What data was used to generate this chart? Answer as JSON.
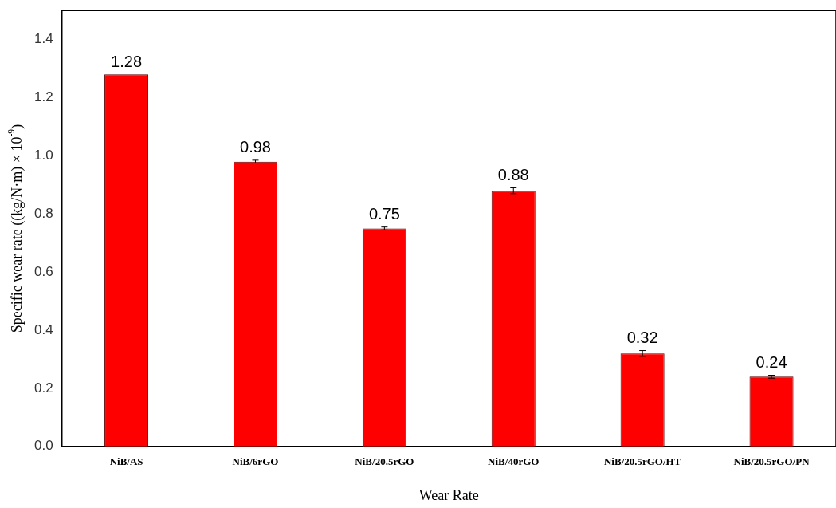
{
  "chart_data": {
    "type": "bar",
    "xlabel": "Wear Rate",
    "ylabel": "Specific wear rate ((kg/N·m) × 10$^{-9}$)",
    "categories": [
      "NiB/AS",
      "NiB/6rGO",
      "NiB/20.5rGO",
      "NiB/40rGO",
      "NiB/20.5rGO/HT",
      "NiB/20.5rGO/PN"
    ],
    "values": [
      1.28,
      0.98,
      0.75,
      0.88,
      0.32,
      0.24
    ],
    "errors": [
      null,
      0.005,
      0.005,
      0.01,
      0.01,
      0.005
    ],
    "color": "#ff0000",
    "ylim": [
      0,
      1.5
    ],
    "yticks": [
      {
        "value": 0,
        "label": "0.0"
      },
      0.2,
      0.4,
      0.6,
      0.8,
      {
        "value": 1,
        "label": "1.0"
      },
      1.2,
      1.4
    ],
    "grid": false,
    "legend": false,
    "data_labels": true
  }
}
